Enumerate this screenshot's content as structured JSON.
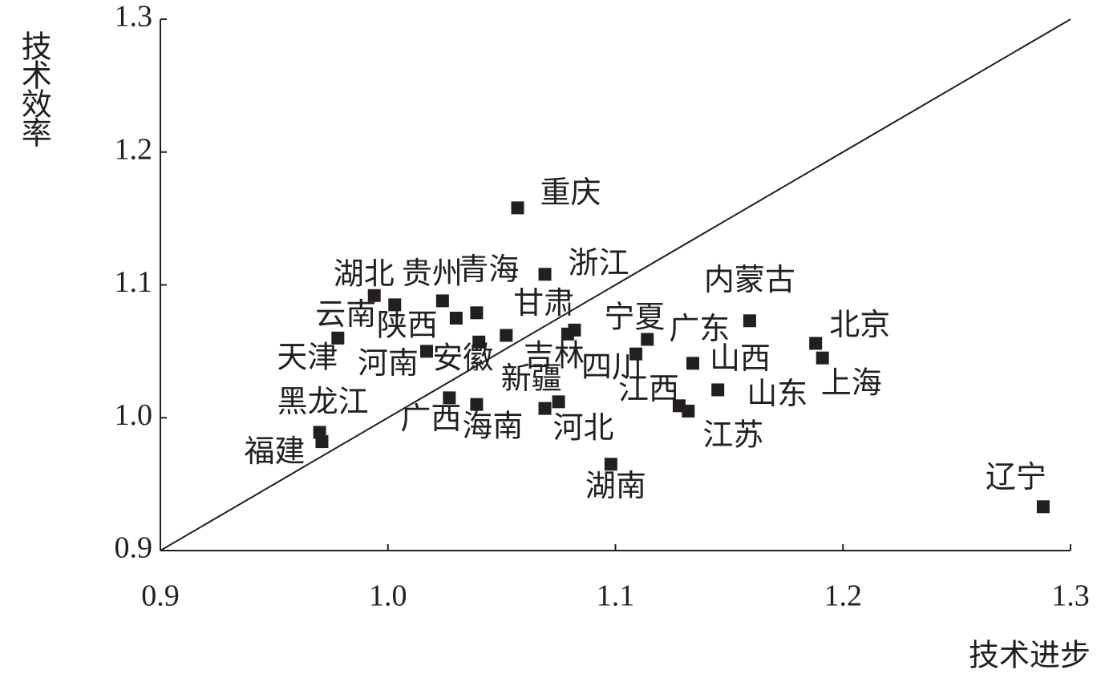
{
  "chart_data": {
    "type": "scatter",
    "x_label": "技术进步",
    "y_label": "技术效率",
    "labels": [
      "重庆",
      "浙江",
      "湖北",
      "云南",
      "贵州",
      "青海",
      "陕西",
      "天津",
      "安徽",
      "甘肃",
      "河南",
      "吉林",
      "宁夏",
      "广东",
      "内蒙古",
      "北京",
      "上海",
      "山西",
      "山东",
      "四川",
      "新疆",
      "河北",
      "广西",
      "海南",
      "江西",
      "江苏",
      "黑龙江",
      "福建",
      "湖南",
      "辽宁"
    ],
    "x": [
      1.057,
      1.069,
      0.994,
      1.003,
      1.024,
      1.039,
      1.03,
      0.978,
      1.04,
      1.052,
      1.017,
      1.079,
      1.082,
      1.114,
      1.159,
      1.188,
      1.191,
      1.134,
      1.145,
      1.109,
      1.075,
      1.069,
      1.027,
      1.039,
      1.128,
      1.132,
      0.97,
      0.971,
      1.098,
      1.288
    ],
    "values": [
      1.158,
      1.108,
      1.092,
      1.085,
      1.088,
      1.079,
      1.075,
      1.06,
      1.057,
      1.062,
      1.05,
      1.063,
      1.066,
      1.059,
      1.073,
      1.056,
      1.045,
      1.041,
      1.021,
      1.048,
      1.012,
      1.007,
      1.015,
      1.01,
      1.009,
      1.005,
      0.989,
      0.982,
      0.965,
      0.933
    ],
    "color": "#231f20",
    "xlim": [
      0.9,
      1.3
    ],
    "ylim": [
      0.9,
      1.3
    ],
    "xticks": [
      0.9,
      {
        "value": 1,
        "label": "1.0"
      },
      1.1,
      1.2,
      1.3
    ],
    "yticks": [
      0.9,
      {
        "value": 1,
        "label": "1.0"
      },
      1.1,
      1.2,
      1.3
    ],
    "reference_line": true
  }
}
